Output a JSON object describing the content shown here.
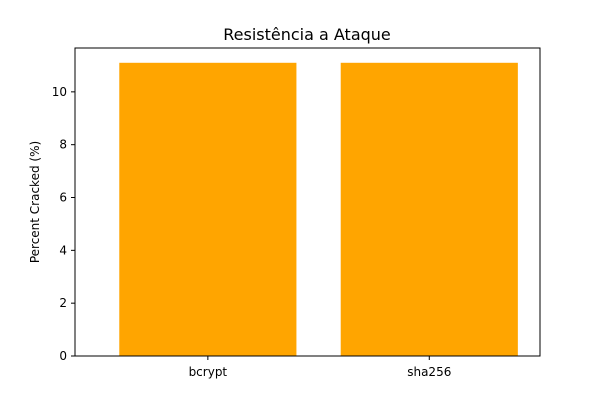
{
  "chart_data": {
    "type": "bar",
    "title": "Resistência a Ataque",
    "xlabel": "",
    "ylabel": "Percent Cracked (%)",
    "categories": [
      "bcrypt",
      "sha256"
    ],
    "values": [
      11.1,
      11.1
    ],
    "ylim": [
      0,
      11.66
    ],
    "yticks": [
      0,
      2,
      4,
      6,
      8,
      10
    ],
    "bar_color": "#FFA500",
    "grid": false,
    "legend": "none"
  }
}
